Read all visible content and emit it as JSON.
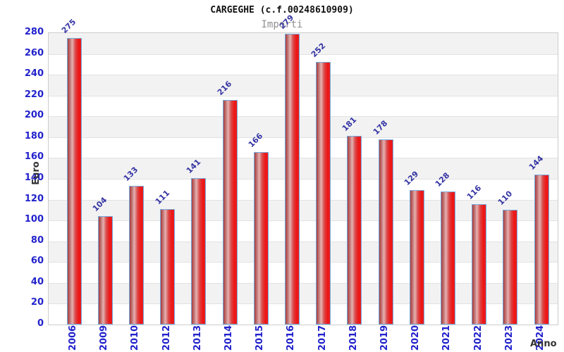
{
  "chart_data": {
    "type": "bar",
    "title": "CARGEGHE (c.f.00248610909)",
    "subtitle": "Importi",
    "xlabel": "Anno",
    "ylabel": "Euro",
    "categories": [
      "2006",
      "2009",
      "2010",
      "2012",
      "2013",
      "2014",
      "2015",
      "2016",
      "2017",
      "2018",
      "2019",
      "2020",
      "2021",
      "2022",
      "2023",
      "2024"
    ],
    "values": [
      275,
      104,
      133,
      111,
      141,
      216,
      166,
      279,
      252,
      181,
      178,
      129,
      128,
      116,
      110,
      144
    ],
    "ylim": [
      0,
      280
    ],
    "ytick_step": 20,
    "grid": "horizontal-bands",
    "legend_position": "none",
    "bar_value_labels_rotation_deg": -45,
    "x_tick_labels_rotation_deg": -90,
    "colors": {
      "title": "#111111",
      "subtitle": "#909090",
      "tick_label": "#2222cc",
      "value_label": "#3434a4",
      "axis_title": "#333333",
      "band": "#f2f2f2",
      "gridline": "#e2e2e2",
      "plot_border": "#cccccc",
      "bar_fill": "#e62020",
      "bar_fill_dark": "#a83c3c",
      "bar_fill_light": "#e5b2b2",
      "bar_border": "#74aadd"
    }
  }
}
